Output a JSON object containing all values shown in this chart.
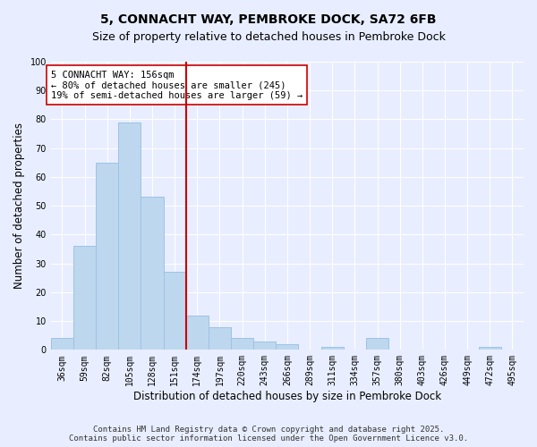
{
  "title": "5, CONNACHT WAY, PEMBROKE DOCK, SA72 6FB",
  "subtitle": "Size of property relative to detached houses in Pembroke Dock",
  "xlabel": "Distribution of detached houses by size in Pembroke Dock",
  "ylabel": "Number of detached properties",
  "bar_labels": [
    "36sqm",
    "59sqm",
    "82sqm",
    "105sqm",
    "128sqm",
    "151sqm",
    "174sqm",
    "197sqm",
    "220sqm",
    "243sqm",
    "266sqm",
    "289sqm",
    "311sqm",
    "334sqm",
    "357sqm",
    "380sqm",
    "403sqm",
    "426sqm",
    "449sqm",
    "472sqm",
    "495sqm"
  ],
  "bar_values": [
    4,
    36,
    65,
    79,
    53,
    27,
    12,
    8,
    4,
    3,
    2,
    0,
    1,
    0,
    4,
    0,
    0,
    0,
    0,
    1,
    0
  ],
  "bar_color": "#bdd7ee",
  "bar_edge_color": "#9dc3e6",
  "vline_x": 5.5,
  "vline_color": "#cc0000",
  "annotation_text": "5 CONNACHT WAY: 156sqm\n← 80% of detached houses are smaller (245)\n19% of semi-detached houses are larger (59) →",
  "annotation_box_color": "#ffffff",
  "annotation_box_edge": "#cc0000",
  "ylim": [
    0,
    100
  ],
  "yticks": [
    0,
    10,
    20,
    30,
    40,
    50,
    60,
    70,
    80,
    90,
    100
  ],
  "footer_text": "Contains HM Land Registry data © Crown copyright and database right 2025.\nContains public sector information licensed under the Open Government Licence v3.0.",
  "background_color": "#e8eeff",
  "grid_color": "#ffffff",
  "title_fontsize": 10,
  "subtitle_fontsize": 9,
  "axis_label_fontsize": 8.5,
  "tick_fontsize": 7,
  "annotation_fontsize": 7.5,
  "footer_fontsize": 6.5
}
